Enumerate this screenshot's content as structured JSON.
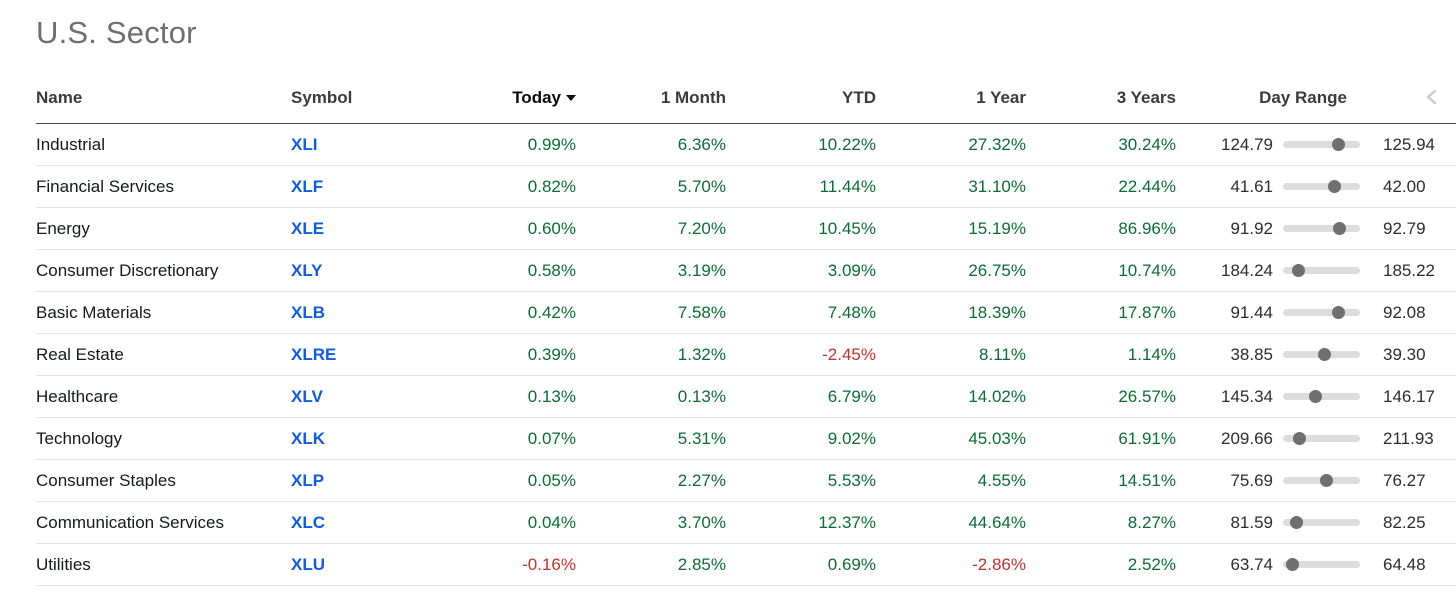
{
  "title": "U.S. Sector",
  "columns": {
    "name": "Name",
    "symbol": "Symbol",
    "today": "Today",
    "month1": "1 Month",
    "ytd": "YTD",
    "year1": "1 Year",
    "years3": "3 Years",
    "day_range": "Day Range"
  },
  "sort": {
    "column": "Today",
    "direction": "descending",
    "icon": "sort-descending-triangle"
  },
  "pager": {
    "icon": "chevron-left"
  },
  "colors": {
    "positive": "#0a6e33",
    "negative": "#c8302c",
    "symbol_blue": "#0d5be8",
    "slider_track": "#dcdcdc",
    "slider_dot": "#6f6f6f",
    "title_gray": "#6e6e73",
    "chevron_gray": "#c9c9ce"
  },
  "rows": [
    {
      "name": "Industrial",
      "symbol": "XLI",
      "today": "0.99%",
      "month1": "6.36%",
      "ytd": "10.22%",
      "year1": "27.32%",
      "years3": "30.24%",
      "day_low": "124.79",
      "day_high": "125.94",
      "day_pos_pct": 71
    },
    {
      "name": "Financial Services",
      "symbol": "XLF",
      "today": "0.82%",
      "month1": "5.70%",
      "ytd": "11.44%",
      "year1": "31.10%",
      "years3": "22.44%",
      "day_low": "41.61",
      "day_high": "42.00",
      "day_pos_pct": 66
    },
    {
      "name": "Energy",
      "symbol": "XLE",
      "today": "0.60%",
      "month1": "7.20%",
      "ytd": "10.45%",
      "year1": "15.19%",
      "years3": "86.96%",
      "day_low": "91.92",
      "day_high": "92.79",
      "day_pos_pct": 73
    },
    {
      "name": "Consumer Discretionary",
      "symbol": "XLY",
      "today": "0.58%",
      "month1": "3.19%",
      "ytd": "3.09%",
      "year1": "26.75%",
      "years3": "10.74%",
      "day_low": "184.24",
      "day_high": "185.22",
      "day_pos_pct": 20
    },
    {
      "name": "Basic Materials",
      "symbol": "XLB",
      "today": "0.42%",
      "month1": "7.58%",
      "ytd": "7.48%",
      "year1": "18.39%",
      "years3": "17.87%",
      "day_low": "91.44",
      "day_high": "92.08",
      "day_pos_pct": 71
    },
    {
      "name": "Real Estate",
      "symbol": "XLRE",
      "today": "0.39%",
      "month1": "1.32%",
      "ytd": "-2.45%",
      "year1": "8.11%",
      "years3": "1.14%",
      "day_low": "38.85",
      "day_high": "39.30",
      "day_pos_pct": 53
    },
    {
      "name": "Healthcare",
      "symbol": "XLV",
      "today": "0.13%",
      "month1": "0.13%",
      "ytd": "6.79%",
      "year1": "14.02%",
      "years3": "26.57%",
      "day_low": "145.34",
      "day_high": "146.17",
      "day_pos_pct": 42
    },
    {
      "name": "Technology",
      "symbol": "XLK",
      "today": "0.07%",
      "month1": "5.31%",
      "ytd": "9.02%",
      "year1": "45.03%",
      "years3": "61.91%",
      "day_low": "209.66",
      "day_high": "211.93",
      "day_pos_pct": 21
    },
    {
      "name": "Consumer Staples",
      "symbol": "XLP",
      "today": "0.05%",
      "month1": "2.27%",
      "ytd": "5.53%",
      "year1": "4.55%",
      "years3": "14.51%",
      "day_low": "75.69",
      "day_high": "76.27",
      "day_pos_pct": 56
    },
    {
      "name": "Communication Services",
      "symbol": "XLC",
      "today": "0.04%",
      "month1": "3.70%",
      "ytd": "12.37%",
      "year1": "44.64%",
      "years3": "8.27%",
      "day_low": "81.59",
      "day_high": "82.25",
      "day_pos_pct": 17
    },
    {
      "name": "Utilities",
      "symbol": "XLU",
      "today": "-0.16%",
      "month1": "2.85%",
      "ytd": "0.69%",
      "year1": "-2.86%",
      "years3": "2.52%",
      "day_low": "63.74",
      "day_high": "64.48",
      "day_pos_pct": 12
    }
  ]
}
